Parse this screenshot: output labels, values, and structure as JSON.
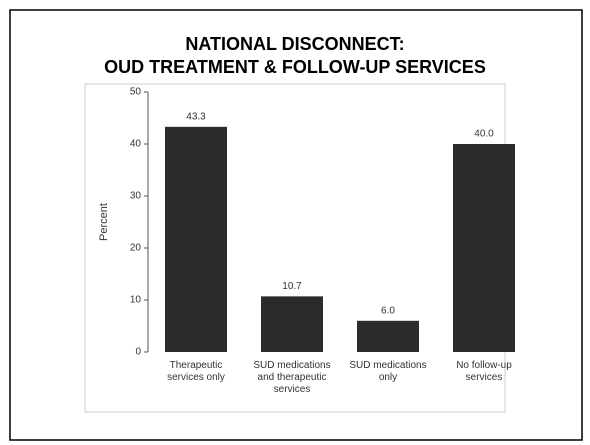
{
  "chart_data": {
    "type": "bar",
    "title": [
      "NATIONAL DISCONNECT:",
      "OUD TREATMENT & FOLLOW-UP SERVICES"
    ],
    "ylabel": "Percent",
    "categories": [
      "Therapeutic services only",
      "SUD medications and therapeutic services",
      "SUD medications only",
      "No follow-up services"
    ],
    "values": [
      43.3,
      10.7,
      6.0,
      40.0
    ],
    "value_labels": [
      "43.3",
      "10.7",
      "6.0",
      "40.0"
    ],
    "color": "#2b2b2b",
    "ylim": [
      0,
      50
    ],
    "yticks": [
      0,
      10,
      20,
      30,
      40,
      50
    ],
    "grid": false
  }
}
